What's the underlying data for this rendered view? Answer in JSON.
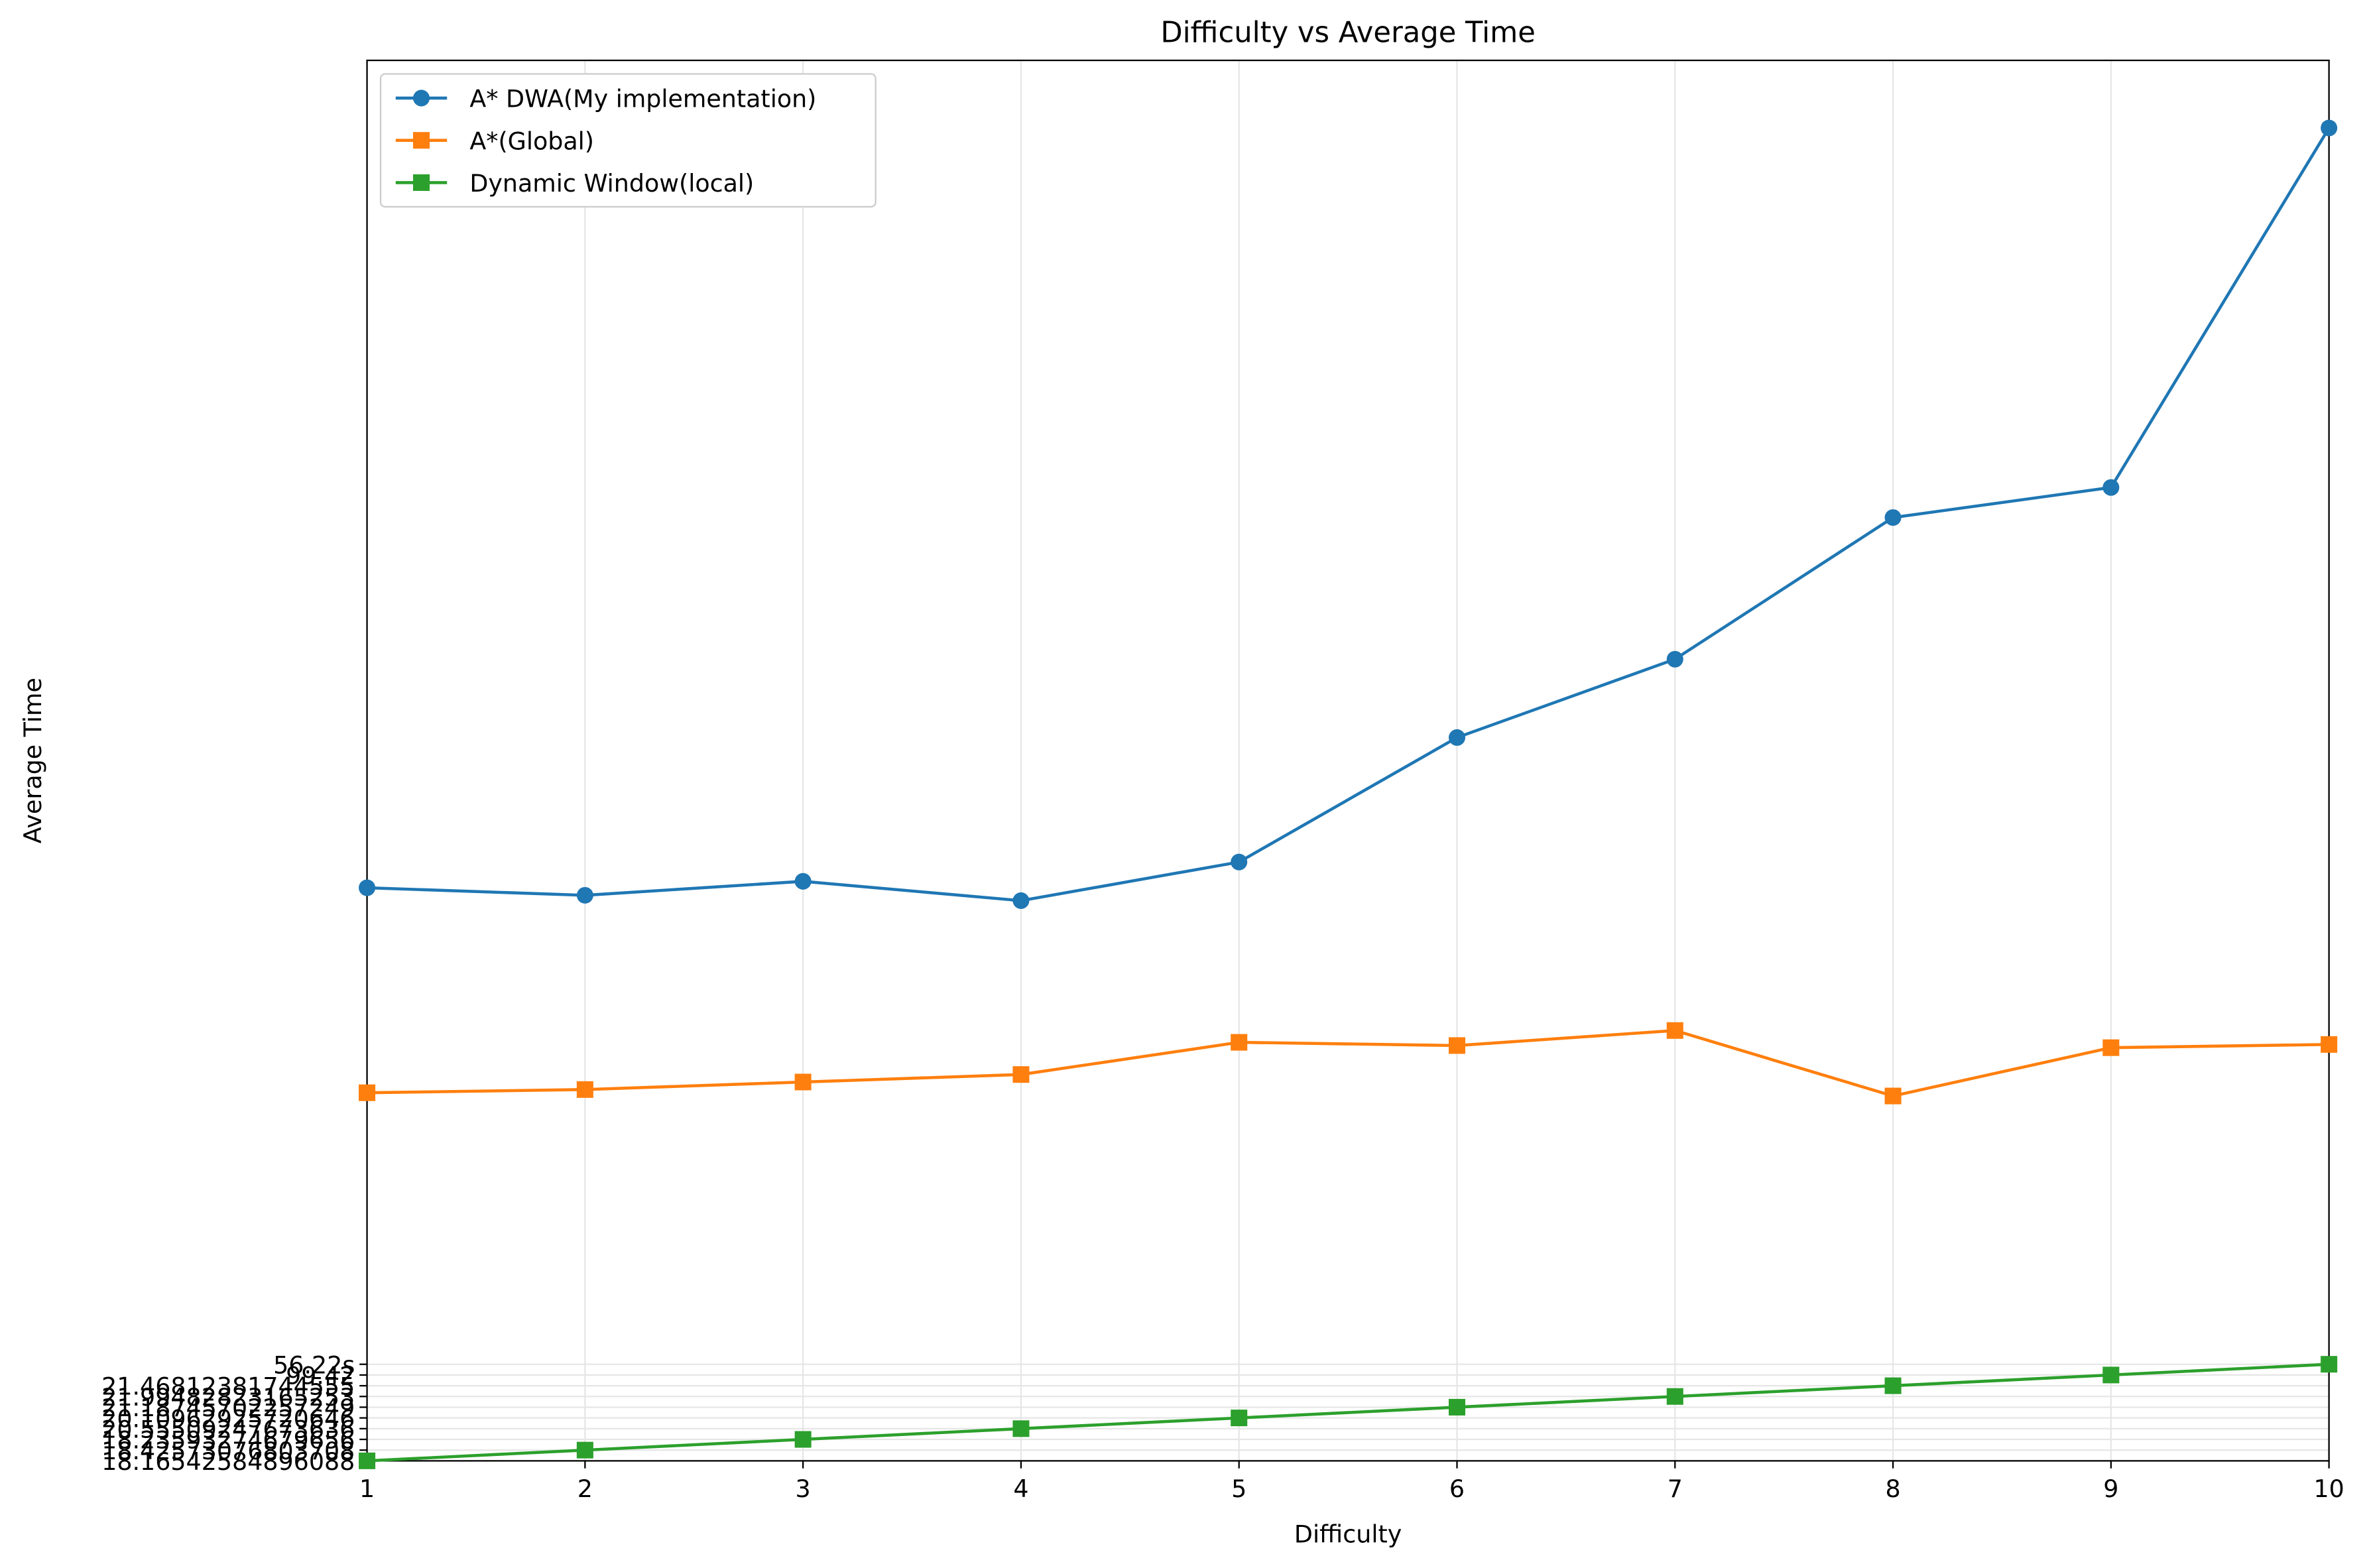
{
  "chart_data": {
    "type": "line",
    "title": "Difficulty vs Average Time",
    "x_label": "Difficulty",
    "y_label": "Average Time",
    "x": [
      1,
      2,
      3,
      4,
      5,
      6,
      7,
      8,
      9,
      10
    ],
    "xlim": [
      1,
      10
    ],
    "xticks": [
      1,
      2,
      3,
      4,
      5,
      6,
      7,
      8,
      9,
      10
    ],
    "ylim": [
      0,
      130.5
    ],
    "yticks": [
      {
        "value": 0,
        "label": "18.16542584896088"
      },
      {
        "value": 1,
        "label": "18.42573076803708"
      },
      {
        "value": 2,
        "label": "18.23593274679656"
      },
      {
        "value": 3,
        "label": "20.55509247673636"
      },
      {
        "value": 4,
        "label": "20.10962925720646"
      },
      {
        "value": 5,
        "label": "21.18745702257249"
      },
      {
        "value": 6,
        "label": "21.99482823165253"
      },
      {
        "value": 7,
        "label": "21.46812381744555"
      },
      {
        "value": 8,
        "label": "99.42"
      },
      {
        "value": 9,
        "label": "56.22s"
      }
    ],
    "grid": true,
    "legend": "upper left",
    "series": [
      {
        "name": "A* DWA(My implementation)",
        "color": "#1f77b4",
        "marker": "circle",
        "values": [
          53.4,
          52.7,
          54.0,
          52.2,
          55.8,
          67.4,
          74.7,
          87.9,
          90.7,
          124.2
        ]
      },
      {
        "name": "A*(Global)",
        "color": "#ff7f0e",
        "marker": "square",
        "values": [
          34.3,
          34.6,
          35.3,
          36.0,
          39.0,
          38.7,
          40.1,
          34.0,
          38.5,
          38.8
        ]
      },
      {
        "name": "Dynamic Window(local)",
        "color": "#2ca02c",
        "marker": "square",
        "values": [
          0,
          1,
          2,
          3,
          4,
          5,
          6,
          7,
          8,
          9
        ]
      }
    ]
  }
}
